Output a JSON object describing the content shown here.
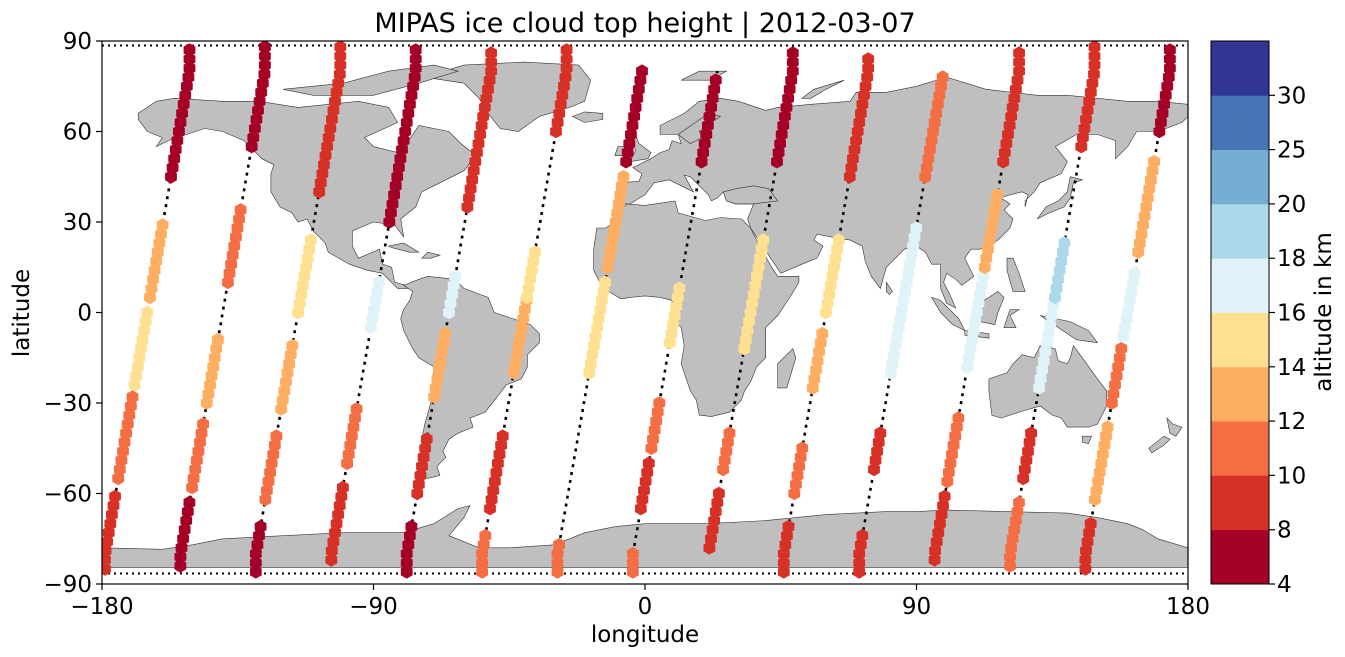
{
  "chart_data": {
    "type": "scatter",
    "title": "MIPAS ice cloud top height | 2012-03-07",
    "xlabel": "longitude",
    "ylabel": "latitude",
    "xlim": [
      -180,
      180
    ],
    "ylim": [
      -90,
      90
    ],
    "x_ticks": [
      -180,
      -90,
      0,
      90,
      180
    ],
    "y_ticks": [
      -90,
      -60,
      -30,
      0,
      30,
      60,
      90
    ],
    "x_tick_labels": [
      "−180",
      "−90",
      "0",
      "90",
      "180"
    ],
    "y_tick_labels": [
      "−90",
      "−60",
      "−30",
      "0",
      "30",
      "60",
      "90"
    ],
    "grid": false,
    "background": "world map (land in grey)",
    "land_color": "#bfbfbf",
    "track_style": "black dotted orbit tracks",
    "colorbar": {
      "label": "altitude in km",
      "bounds": [
        4,
        8,
        10,
        12,
        14,
        16,
        18,
        20,
        25,
        30
      ],
      "tick_labels": [
        "4",
        "8",
        "10",
        "12",
        "14",
        "16",
        "18",
        "20",
        "25",
        "30"
      ],
      "colors": [
        "#a50026",
        "#d73027",
        "#f46d43",
        "#fdae61",
        "#fee090",
        "#e0f3f8",
        "#abd9e9",
        "#74add1",
        "#4575b4",
        "#313695"
      ]
    },
    "orbits": [
      {
        "lon_s": -179,
        "lon_n": -151
      },
      {
        "lon_s": -154,
        "lon_n": -126
      },
      {
        "lon_s": -129,
        "lon_n": -101
      },
      {
        "lon_s": -104,
        "lon_n": -76
      },
      {
        "lon_s": -79,
        "lon_n": -51
      },
      {
        "lon_s": -54,
        "lon_n": -26
      },
      {
        "lon_s": -29,
        "lon_n": -1
      },
      {
        "lon_s": -4,
        "lon_n": 24
      },
      {
        "lon_s": 21,
        "lon_n": 49
      },
      {
        "lon_s": 46,
        "lon_n": 74
      },
      {
        "lon_s": 71,
        "lon_n": 99
      },
      {
        "lon_s": 96,
        "lon_n": 124
      },
      {
        "lon_s": 121,
        "lon_n": 149
      },
      {
        "lon_s": 146,
        "lon_n": 174
      }
    ],
    "cloud_segments": [
      {
        "orbit": 0,
        "lat_from": -85,
        "lat_to": -60,
        "alt": 8.8
      },
      {
        "orbit": 0,
        "lat_from": -55,
        "lat_to": -28,
        "alt": 11.5
      },
      {
        "orbit": 0,
        "lat_from": -24,
        "lat_to": 0,
        "alt": 14.8
      },
      {
        "orbit": 0,
        "lat_from": 5,
        "lat_to": 30,
        "alt": 13.2
      },
      {
        "orbit": 0,
        "lat_from": 45,
        "lat_to": 88,
        "alt": 7.0
      },
      {
        "orbit": 1,
        "lat_from": -84,
        "lat_to": -62,
        "alt": 7.0
      },
      {
        "orbit": 1,
        "lat_from": -58,
        "lat_to": -35,
        "alt": 11.2
      },
      {
        "orbit": 1,
        "lat_from": -30,
        "lat_to": -8,
        "alt": 13.0
      },
      {
        "orbit": 1,
        "lat_from": 10,
        "lat_to": 35,
        "alt": 11.5
      },
      {
        "orbit": 1,
        "lat_from": 55,
        "lat_to": 88,
        "alt": 7.2
      },
      {
        "orbit": 2,
        "lat_from": -86,
        "lat_to": -70,
        "alt": 7.5
      },
      {
        "orbit": 2,
        "lat_from": -62,
        "lat_to": -40,
        "alt": 11.0
      },
      {
        "orbit": 2,
        "lat_from": -32,
        "lat_to": -10,
        "alt": 13.5
      },
      {
        "orbit": 2,
        "lat_from": 0,
        "lat_to": 25,
        "alt": 15.0
      },
      {
        "orbit": 2,
        "lat_from": 40,
        "lat_to": 88,
        "alt": 8.5
      },
      {
        "orbit": 3,
        "lat_from": -82,
        "lat_to": -58,
        "alt": 8.5
      },
      {
        "orbit": 3,
        "lat_from": -50,
        "lat_to": -30,
        "alt": 11.0
      },
      {
        "orbit": 3,
        "lat_from": -5,
        "lat_to": 10,
        "alt": 16.8
      },
      {
        "orbit": 3,
        "lat_from": 30,
        "lat_to": 88,
        "alt": 7.0
      },
      {
        "orbit": 4,
        "lat_from": -86,
        "lat_to": -70,
        "alt": 7.2
      },
      {
        "orbit": 4,
        "lat_from": -60,
        "lat_to": -42,
        "alt": 9.5
      },
      {
        "orbit": 4,
        "lat_from": -28,
        "lat_to": -5,
        "alt": 12.5
      },
      {
        "orbit": 4,
        "lat_from": 0,
        "lat_to": 12,
        "alt": 16.5
      },
      {
        "orbit": 4,
        "lat_from": 35,
        "lat_to": 88,
        "alt": 8.5
      },
      {
        "orbit": 5,
        "lat_from": -86,
        "lat_to": -72,
        "alt": 11.0
      },
      {
        "orbit": 5,
        "lat_from": -65,
        "lat_to": -40,
        "alt": 9.0
      },
      {
        "orbit": 5,
        "lat_from": -20,
        "lat_to": 5,
        "alt": 13.5
      },
      {
        "orbit": 5,
        "lat_from": 5,
        "lat_to": 20,
        "alt": 15.0
      },
      {
        "orbit": 5,
        "lat_from": 60,
        "lat_to": 88,
        "alt": 8.8
      },
      {
        "orbit": 6,
        "lat_from": -86,
        "lat_to": -76,
        "alt": 11.5
      },
      {
        "orbit": 6,
        "lat_from": -20,
        "lat_to": 10,
        "alt": 15.0
      },
      {
        "orbit": 6,
        "lat_from": 15,
        "lat_to": 45,
        "alt": 12.0
      },
      {
        "orbit": 6,
        "lat_from": 50,
        "lat_to": 80,
        "alt": 7.5
      },
      {
        "orbit": 7,
        "lat_from": -86,
        "lat_to": -78,
        "alt": 11.2
      },
      {
        "orbit": 7,
        "lat_from": -65,
        "lat_to": -48,
        "alt": 8.0
      },
      {
        "orbit": 7,
        "lat_from": -45,
        "lat_to": -30,
        "alt": 11.5
      },
      {
        "orbit": 7,
        "lat_from": -10,
        "lat_to": 10,
        "alt": 15.0
      },
      {
        "orbit": 7,
        "lat_from": 50,
        "lat_to": 78,
        "alt": 7.0
      },
      {
        "orbit": 8,
        "lat_from": -78,
        "lat_to": -60,
        "alt": 8.5
      },
      {
        "orbit": 8,
        "lat_from": -52,
        "lat_to": -38,
        "alt": 10.5
      },
      {
        "orbit": 8,
        "lat_from": -12,
        "lat_to": 25,
        "alt": 15.2
      },
      {
        "orbit": 8,
        "lat_from": 50,
        "lat_to": 88,
        "alt": 7.5
      },
      {
        "orbit": 9,
        "lat_from": -86,
        "lat_to": -70,
        "alt": 8.2
      },
      {
        "orbit": 9,
        "lat_from": -60,
        "lat_to": -45,
        "alt": 11.8
      },
      {
        "orbit": 9,
        "lat_from": -25,
        "lat_to": -5,
        "alt": 12.5
      },
      {
        "orbit": 9,
        "lat_from": 0,
        "lat_to": 25,
        "alt": 15.0
      },
      {
        "orbit": 9,
        "lat_from": 45,
        "lat_to": 85,
        "alt": 9.0
      },
      {
        "orbit": 10,
        "lat_from": -86,
        "lat_to": -72,
        "alt": 8.5
      },
      {
        "orbit": 10,
        "lat_from": -52,
        "lat_to": -38,
        "alt": 8.0
      },
      {
        "orbit": 10,
        "lat_from": -20,
        "lat_to": 10,
        "alt": 16.5
      },
      {
        "orbit": 10,
        "lat_from": 10,
        "lat_to": 30,
        "alt": 17.2
      },
      {
        "orbit": 10,
        "lat_from": 45,
        "lat_to": 80,
        "alt": 11.5
      },
      {
        "orbit": 11,
        "lat_from": -82,
        "lat_to": -60,
        "alt": 9.0
      },
      {
        "orbit": 11,
        "lat_from": -56,
        "lat_to": -35,
        "alt": 11.5
      },
      {
        "orbit": 11,
        "lat_from": -18,
        "lat_to": 12,
        "alt": 17.0
      },
      {
        "orbit": 11,
        "lat_from": 15,
        "lat_to": 40,
        "alt": 13.5
      },
      {
        "orbit": 11,
        "lat_from": 50,
        "lat_to": 88,
        "alt": 8.5
      },
      {
        "orbit": 12,
        "lat_from": -84,
        "lat_to": -62,
        "alt": 10.5
      },
      {
        "orbit": 12,
        "lat_from": -55,
        "lat_to": -38,
        "alt": 8.5
      },
      {
        "orbit": 12,
        "lat_from": -25,
        "lat_to": 5,
        "alt": 16.8
      },
      {
        "orbit": 12,
        "lat_from": 5,
        "lat_to": 25,
        "alt": 18.2
      },
      {
        "orbit": 12,
        "lat_from": 55,
        "lat_to": 88,
        "alt": 8.0
      },
      {
        "orbit": 13,
        "lat_from": -85,
        "lat_to": -68,
        "alt": 8.5
      },
      {
        "orbit": 13,
        "lat_from": -62,
        "lat_to": -38,
        "alt": 12.5
      },
      {
        "orbit": 13,
        "lat_from": -30,
        "lat_to": -10,
        "alt": 11.5
      },
      {
        "orbit": 13,
        "lat_from": -8,
        "lat_to": 15,
        "alt": 17.0
      },
      {
        "orbit": 13,
        "lat_from": 20,
        "lat_to": 50,
        "alt": 13.0
      },
      {
        "orbit": 13,
        "lat_from": 60,
        "lat_to": 88,
        "alt": 7.5
      }
    ]
  }
}
